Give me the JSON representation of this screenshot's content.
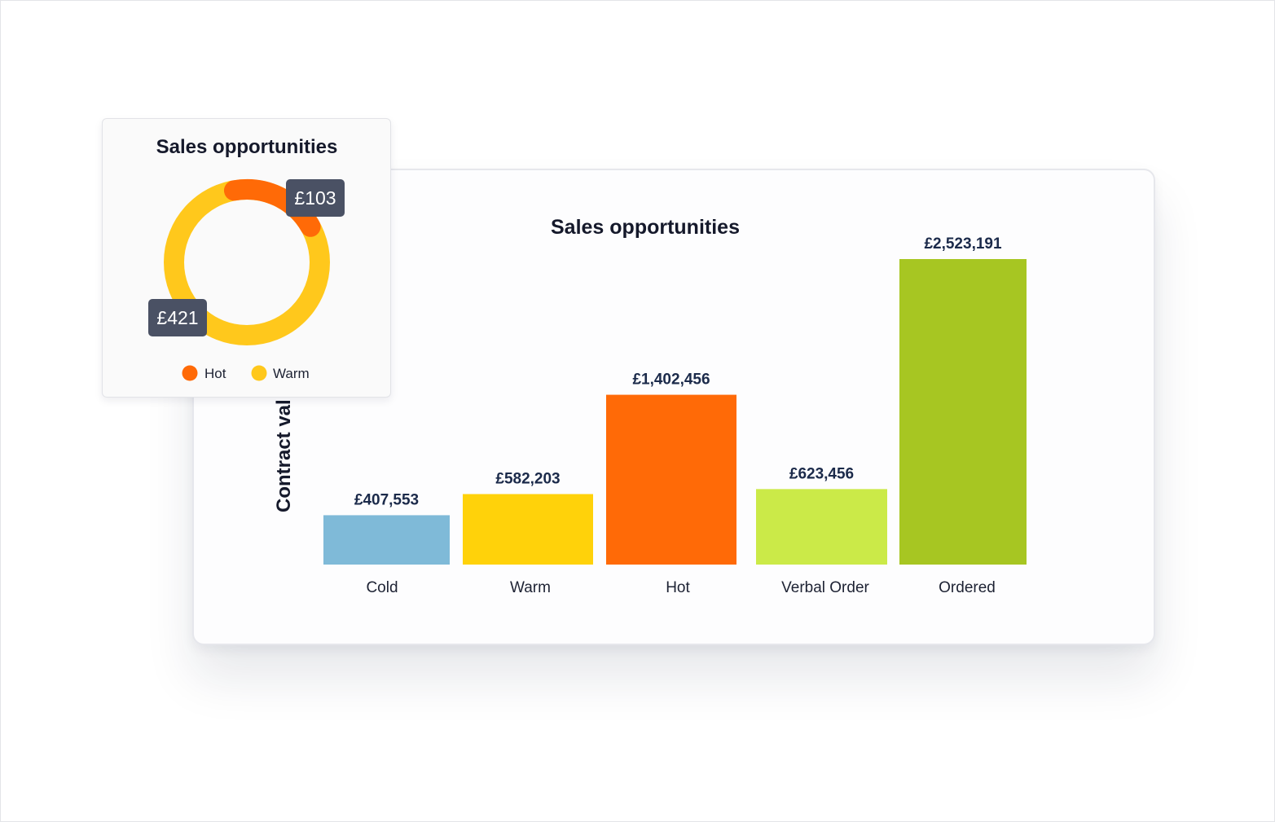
{
  "chart_data": [
    {
      "type": "bar",
      "title": "Sales opportunities",
      "ylabel": "Contract val",
      "xlabel": "",
      "categories": [
        "Cold",
        "Warm",
        "Hot",
        "Verbal Order",
        "Ordered"
      ],
      "values": [
        407553,
        582203,
        1402456,
        623456,
        2523191
      ],
      "value_labels": [
        "£407,553",
        "£582,203",
        "£1,402,456",
        "£623,456",
        "£2,523,191"
      ],
      "colors": [
        "#7fbad8",
        "#ffd20a",
        "#ff6a07",
        "#cbea48",
        "#a7c622"
      ],
      "ylim": [
        0,
        2523191
      ],
      "grid": false,
      "legend": "none"
    },
    {
      "type": "pie",
      "title": "Sales opportunities",
      "categories": [
        "Hot",
        "Warm"
      ],
      "values": [
        103,
        421
      ],
      "value_labels": [
        "£103",
        "£421"
      ],
      "colors": [
        "#ff6a07",
        "#ffc81c"
      ],
      "donut": true,
      "legend": "bottom"
    }
  ],
  "colors": {
    "tag_background": "#4a5164",
    "title_text": "#15192b",
    "value_text": "#1b2a4a"
  }
}
